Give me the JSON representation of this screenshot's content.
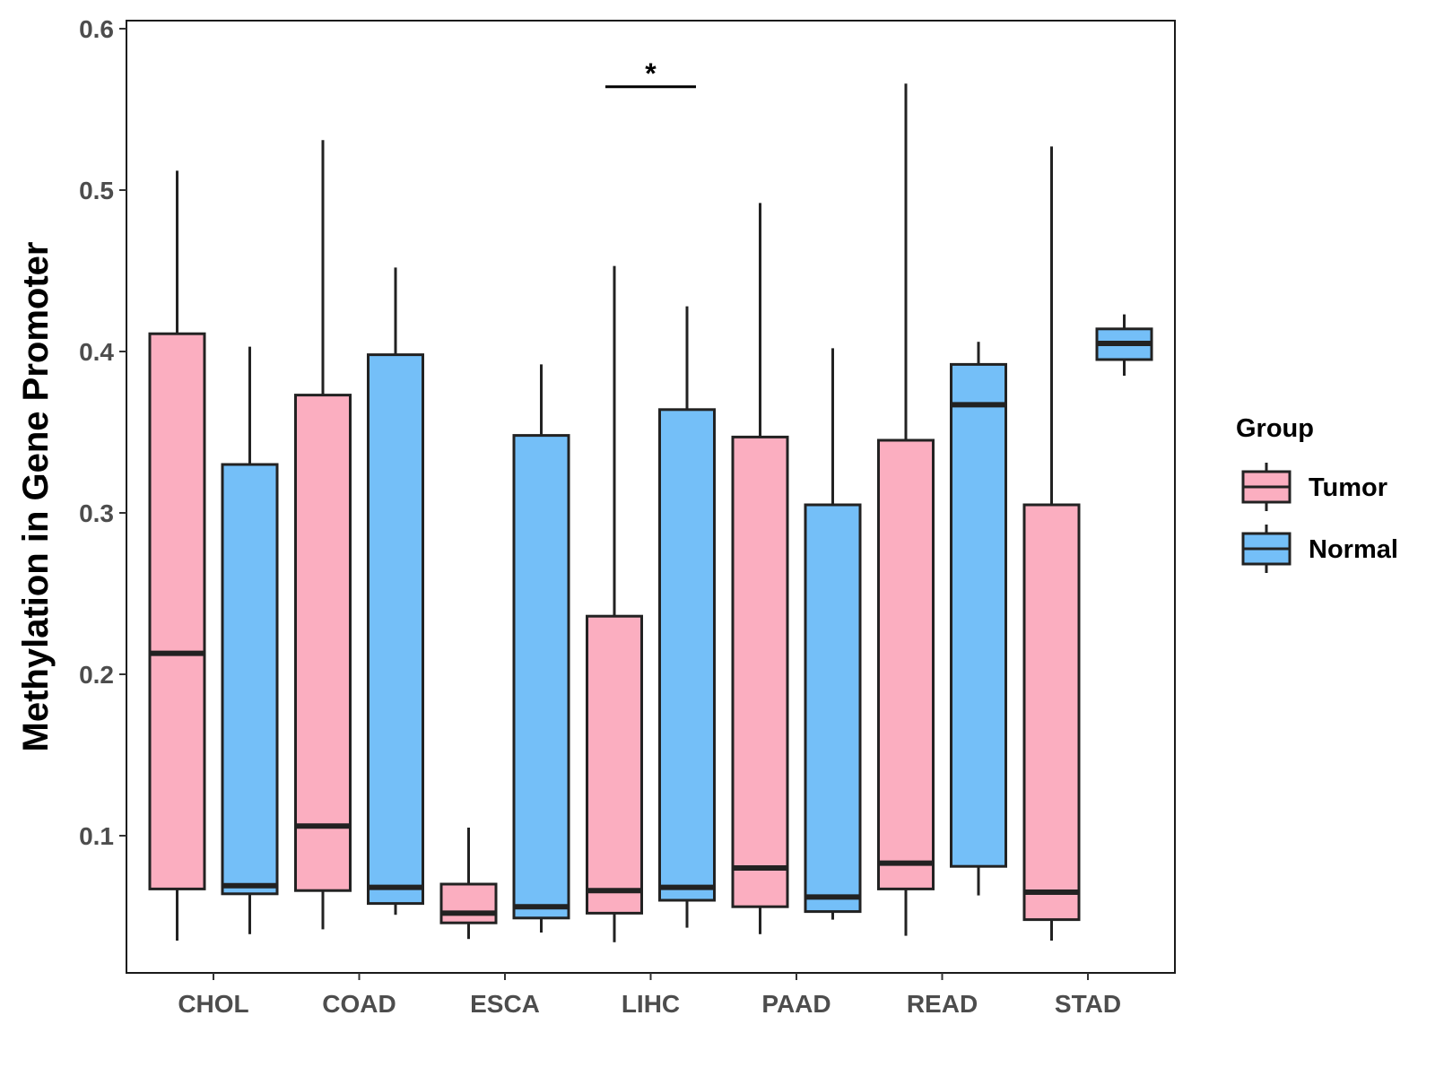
{
  "chart_data": {
    "type": "boxplot",
    "title": "",
    "xlabel": "",
    "ylabel": "Methylation in Gene Promoter",
    "ylim": [
      0.015,
      0.605
    ],
    "yticks": [
      0.1,
      0.2,
      0.3,
      0.4,
      0.5,
      0.6
    ],
    "ytick_labels": [
      "0.1",
      "0.2",
      "0.3",
      "0.4",
      "0.5",
      "0.6"
    ],
    "categories": [
      "CHOL",
      "COAD",
      "ESCA",
      "LIHC",
      "PAAD",
      "READ",
      "STAD"
    ],
    "legend": {
      "title": "Group",
      "position": "right",
      "entries": [
        {
          "name": "Tumor",
          "color": "#FBAEC0"
        },
        {
          "name": "Normal",
          "color": "#74BFF8"
        }
      ]
    },
    "series": [
      {
        "name": "Tumor",
        "color": "#FBAEC0",
        "boxes": [
          {
            "category": "CHOL",
            "whisker_low": 0.035,
            "q1": 0.067,
            "median": 0.213,
            "q3": 0.411,
            "whisker_high": 0.512
          },
          {
            "category": "COAD",
            "whisker_low": 0.042,
            "q1": 0.066,
            "median": 0.106,
            "q3": 0.373,
            "whisker_high": 0.531
          },
          {
            "category": "ESCA",
            "whisker_low": 0.036,
            "q1": 0.046,
            "median": 0.052,
            "q3": 0.07,
            "whisker_high": 0.105
          },
          {
            "category": "LIHC",
            "whisker_low": 0.034,
            "q1": 0.052,
            "median": 0.066,
            "q3": 0.236,
            "whisker_high": 0.453
          },
          {
            "category": "PAAD",
            "whisker_low": 0.039,
            "q1": 0.056,
            "median": 0.08,
            "q3": 0.347,
            "whisker_high": 0.492
          },
          {
            "category": "READ",
            "whisker_low": 0.038,
            "q1": 0.067,
            "median": 0.083,
            "q3": 0.345,
            "whisker_high": 0.566
          },
          {
            "category": "STAD",
            "whisker_low": 0.035,
            "q1": 0.048,
            "median": 0.065,
            "q3": 0.305,
            "whisker_high": 0.527
          }
        ]
      },
      {
        "name": "Normal",
        "color": "#74BFF8",
        "boxes": [
          {
            "category": "CHOL",
            "whisker_low": 0.039,
            "q1": 0.064,
            "median": 0.069,
            "q3": 0.33,
            "whisker_high": 0.403
          },
          {
            "category": "COAD",
            "whisker_low": 0.051,
            "q1": 0.058,
            "median": 0.068,
            "q3": 0.398,
            "whisker_high": 0.452
          },
          {
            "category": "ESCA",
            "whisker_low": 0.04,
            "q1": 0.049,
            "median": 0.056,
            "q3": 0.348,
            "whisker_high": 0.392
          },
          {
            "category": "LIHC",
            "whisker_low": 0.043,
            "q1": 0.06,
            "median": 0.068,
            "q3": 0.364,
            "whisker_high": 0.428
          },
          {
            "category": "PAAD",
            "whisker_low": 0.048,
            "q1": 0.053,
            "median": 0.062,
            "q3": 0.305,
            "whisker_high": 0.402
          },
          {
            "category": "READ",
            "whisker_low": 0.063,
            "q1": 0.081,
            "median": 0.367,
            "q3": 0.392,
            "whisker_high": 0.406
          },
          {
            "category": "STAD",
            "whisker_low": 0.385,
            "q1": 0.395,
            "median": 0.405,
            "q3": 0.414,
            "whisker_high": 0.423
          }
        ]
      }
    ],
    "annotations": [
      {
        "category": "LIHC",
        "label": "*",
        "y": 0.564
      }
    ]
  }
}
